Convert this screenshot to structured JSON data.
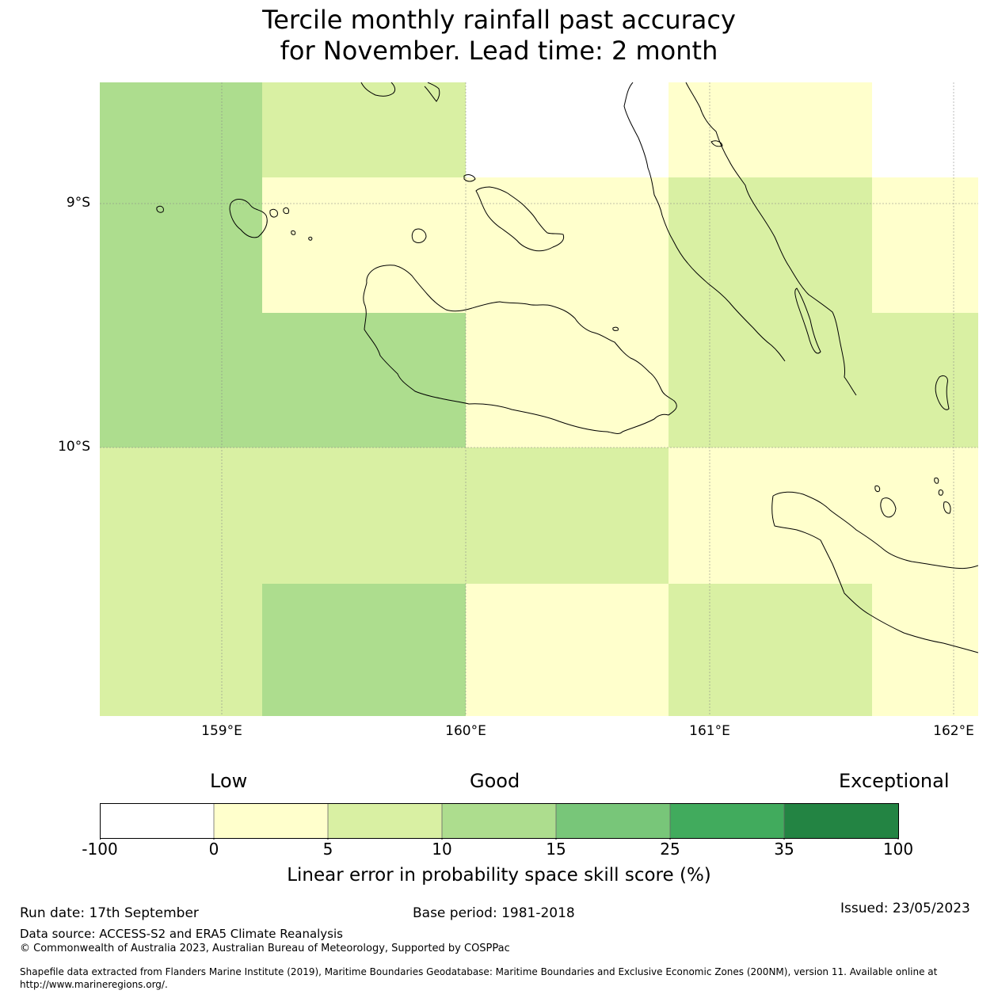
{
  "title": {
    "line1": "Tercile monthly rainfall past accuracy",
    "line2": "for November. Lead time: 2 month"
  },
  "map": {
    "lat_labels": [
      "9°S",
      "10°S"
    ],
    "lon_labels": [
      "159°E",
      "160°E",
      "161°E",
      "162°E"
    ],
    "extent": {
      "lon_min": 158.5,
      "lon_max": 162.1,
      "lat_min": -11.1,
      "lat_max": -8.5
    },
    "skill_grid": [
      {
        "lon": [
          158.5,
          159.17
        ],
        "lat": [
          -8.5,
          -10.0
        ],
        "value": "10-15"
      },
      {
        "lon": [
          159.17,
          160.0
        ],
        "lat": [
          -8.5,
          -8.89
        ],
        "value": "5-10"
      },
      {
        "lon": [
          160.0,
          160.83
        ],
        "lat": [
          -8.5,
          -8.89
        ],
        "value": "<0"
      },
      {
        "lon": [
          160.83,
          161.67
        ],
        "lat": [
          -8.5,
          -8.89
        ],
        "value": "0-5"
      },
      {
        "lon": [
          161.67,
          162.1
        ],
        "lat": [
          -8.5,
          -8.89
        ],
        "value": "<0"
      },
      {
        "lon": [
          159.17,
          160.83
        ],
        "lat": [
          -8.89,
          -9.44
        ],
        "value": "0-5"
      },
      {
        "lon": [
          160.83,
          161.67
        ],
        "lat": [
          -8.89,
          -9.44
        ],
        "value": "5-10"
      },
      {
        "lon": [
          161.67,
          162.1
        ],
        "lat": [
          -8.89,
          -9.44
        ],
        "value": "0-5"
      },
      {
        "lon": [
          159.17,
          160.0
        ],
        "lat": [
          -9.44,
          -10.0
        ],
        "value": "10-15"
      },
      {
        "lon": [
          160.0,
          160.83
        ],
        "lat": [
          -9.44,
          -10.0
        ],
        "value": "0-5"
      },
      {
        "lon": [
          160.83,
          162.1
        ],
        "lat": [
          -9.44,
          -10.0
        ],
        "value": "5-10"
      },
      {
        "lon": [
          158.5,
          160.83
        ],
        "lat": [
          -10.0,
          -10.56
        ],
        "value": "5-10"
      },
      {
        "lon": [
          160.83,
          162.1
        ],
        "lat": [
          -10.0,
          -10.56
        ],
        "value": "0-5"
      },
      {
        "lon": [
          158.5,
          159.17
        ],
        "lat": [
          -10.56,
          -11.1
        ],
        "value": "5-10"
      },
      {
        "lon": [
          159.17,
          160.0
        ],
        "lat": [
          -10.56,
          -11.1
        ],
        "value": "10-15"
      },
      {
        "lon": [
          160.0,
          160.83
        ],
        "lat": [
          -10.56,
          -11.1
        ],
        "value": "0-5"
      },
      {
        "lon": [
          160.83,
          161.67
        ],
        "lat": [
          -10.56,
          -11.1
        ],
        "value": "5-10"
      },
      {
        "lon": [
          161.67,
          162.1
        ],
        "lat": [
          -10.56,
          -11.1
        ],
        "value": "0-5"
      }
    ]
  },
  "legend": {
    "categories": {
      "low": "Low",
      "good": "Good",
      "exceptional": "Exceptional"
    },
    "ticks": [
      "-100",
      "0",
      "5",
      "10",
      "15",
      "25",
      "35",
      "100"
    ],
    "colors": [
      "#ffffff",
      "#ffffcc",
      "#d9f0a3",
      "#addd8e",
      "#78c679",
      "#41ab5d",
      "#238443"
    ],
    "axis_label": "Linear error in probability space skill score (%)"
  },
  "footer": {
    "run_date": "Run date: 17th September",
    "base_period": "Base period: 1981-2018",
    "issued": "Issued: 23/05/2023",
    "data_source": "Data source: ACCESS-S2 and ERA5 Climate Reanalysis",
    "copyright": "© Commonwealth of Australia 2023, Australian Bureau of Meteorology, Supported by COSPPac",
    "shapefile_line1": "Shapefile data extracted from Flanders Marine Institute (2019), Maritime Boundaries Geodatabase: Maritime Boundaries and Exclusive Economic Zones (200NM), version 11. Available online at",
    "shapefile_line2": "http://www.marineregions.org/."
  }
}
